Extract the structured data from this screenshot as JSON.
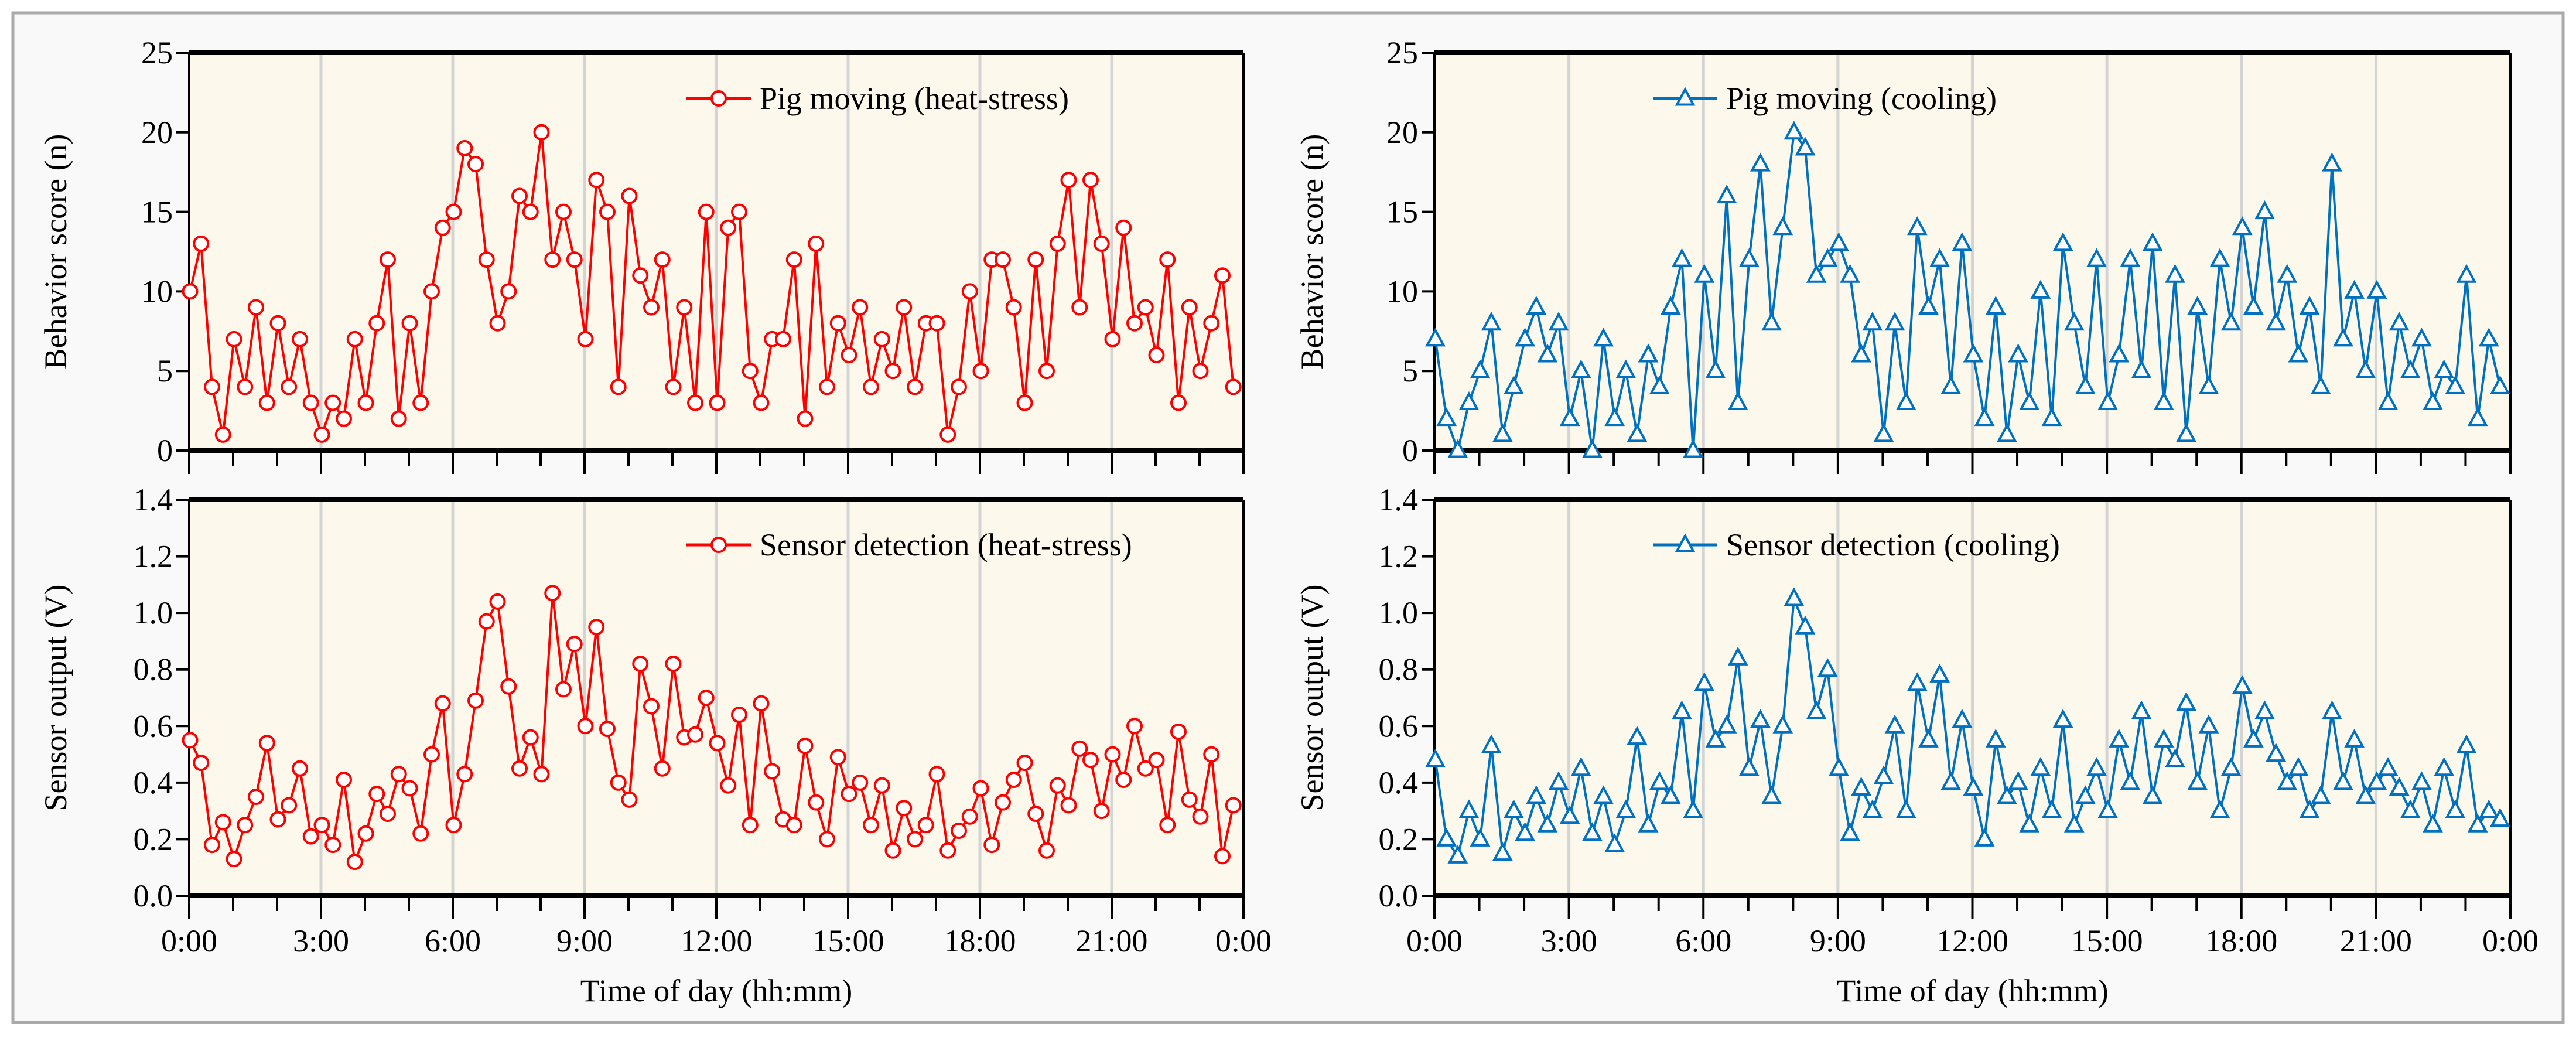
{
  "colors": {
    "heat_stress": "#ff0000",
    "cooling": "#0070c0",
    "plot_bg": "#fdf8ec",
    "grid": "#d4d4d4",
    "frame": "#aaaaaa"
  },
  "chart_data": [
    {
      "type": "line",
      "marker": "circle",
      "series_color": "#ff0000",
      "legend": "Pig moving (heat-stress)",
      "ylabel": "Behavior score (n)",
      "xlabel": "",
      "ylim": [
        0,
        25
      ],
      "yticks": [
        "0",
        "5",
        "10",
        "15",
        "20",
        "25"
      ],
      "xlim_hours": [
        0,
        24
      ],
      "xticks": [],
      "x_interval_minutes": 15,
      "values": [
        10,
        13,
        4,
        1,
        7,
        4,
        9,
        3,
        8,
        4,
        7,
        3,
        1,
        3,
        2,
        7,
        3,
        8,
        12,
        2,
        8,
        3,
        10,
        14,
        15,
        19,
        18,
        12,
        8,
        10,
        16,
        15,
        20,
        12,
        15,
        12,
        7,
        17,
        15,
        4,
        16,
        11,
        9,
        12,
        4,
        9,
        3,
        15,
        3,
        14,
        15,
        5,
        3,
        7,
        7,
        12,
        2,
        13,
        4,
        8,
        6,
        9,
        4,
        7,
        5,
        9,
        4,
        8,
        8,
        1,
        4,
        10,
        5,
        12,
        12,
        9,
        3,
        12,
        5,
        13,
        17,
        9,
        17,
        13,
        7,
        14,
        8,
        9,
        6,
        12,
        3,
        9,
        5,
        8,
        11,
        4
      ]
    },
    {
      "type": "line",
      "marker": "circle",
      "series_color": "#ff0000",
      "legend": "Sensor detection (heat-stress)",
      "ylabel": "Sensor output (V)",
      "xlabel": "Time of day (hh:mm)",
      "ylim": [
        0,
        1.4
      ],
      "yticks": [
        "0.0",
        "0.2",
        "0.4",
        "0.6",
        "0.8",
        "1.0",
        "1.2",
        "1.4"
      ],
      "xlim_hours": [
        0,
        24
      ],
      "xticks": [
        "0:00",
        "3:00",
        "6:00",
        "9:00",
        "12:00",
        "15:00",
        "18:00",
        "21:00",
        "0:00"
      ],
      "x_interval_minutes": 15,
      "values": [
        0.55,
        0.47,
        0.18,
        0.26,
        0.13,
        0.25,
        0.35,
        0.54,
        0.27,
        0.32,
        0.45,
        0.21,
        0.25,
        0.18,
        0.41,
        0.12,
        0.22,
        0.36,
        0.29,
        0.43,
        0.38,
        0.22,
        0.5,
        0.68,
        0.25,
        0.43,
        0.69,
        0.97,
        1.04,
        0.74,
        0.45,
        0.56,
        0.43,
        1.07,
        0.73,
        0.89,
        0.6,
        0.95,
        0.59,
        0.4,
        0.34,
        0.82,
        0.67,
        0.45,
        0.82,
        0.56,
        0.57,
        0.7,
        0.54,
        0.39,
        0.64,
        0.25,
        0.68,
        0.44,
        0.27,
        0.25,
        0.53,
        0.33,
        0.2,
        0.49,
        0.36,
        0.4,
        0.25,
        0.39,
        0.16,
        0.31,
        0.2,
        0.25,
        0.43,
        0.16,
        0.23,
        0.28,
        0.38,
        0.18,
        0.33,
        0.41,
        0.47,
        0.29,
        0.16,
        0.39,
        0.32,
        0.52,
        0.48,
        0.3,
        0.5,
        0.41,
        0.6,
        0.45,
        0.48,
        0.25,
        0.58,
        0.34,
        0.28,
        0.5,
        0.14,
        0.32
      ]
    },
    {
      "type": "line",
      "marker": "triangle",
      "series_color": "#0070c0",
      "legend": "Pig moving (cooling)",
      "ylabel": "Behavior score (n)",
      "xlabel": "",
      "ylim": [
        0,
        25
      ],
      "yticks": [
        "0",
        "5",
        "10",
        "15",
        "20",
        "25"
      ],
      "xlim_hours": [
        0,
        24
      ],
      "xticks": [],
      "x_interval_minutes": 15,
      "values": [
        7,
        2,
        0,
        3,
        5,
        8,
        1,
        4,
        7,
        9,
        6,
        8,
        2,
        5,
        0,
        7,
        2,
        5,
        1,
        6,
        4,
        9,
        12,
        0,
        11,
        5,
        16,
        3,
        12,
        18,
        8,
        14,
        20,
        19,
        11,
        12,
        13,
        11,
        6,
        8,
        1,
        8,
        3,
        14,
        9,
        12,
        4,
        13,
        6,
        2,
        9,
        1,
        6,
        3,
        10,
        2,
        13,
        8,
        4,
        12,
        3,
        6,
        12,
        5,
        13,
        3,
        11,
        1,
        9,
        4,
        12,
        8,
        14,
        9,
        15,
        8,
        11,
        6,
        9,
        4,
        18,
        7,
        10,
        5,
        10,
        3,
        8,
        5,
        7,
        3,
        5,
        4,
        11,
        2,
        7,
        4
      ]
    },
    {
      "type": "line",
      "marker": "triangle",
      "series_color": "#0070c0",
      "legend": "Sensor detection (cooling)",
      "ylabel": "Sensor output (V)",
      "xlabel": "Time of day (hh:mm)",
      "ylim": [
        0,
        1.4
      ],
      "yticks": [
        "0.0",
        "0.2",
        "0.4",
        "0.6",
        "0.8",
        "1.0",
        "1.2",
        "1.4"
      ],
      "xlim_hours": [
        0,
        24
      ],
      "xticks": [
        "0:00",
        "3:00",
        "6:00",
        "9:00",
        "12:00",
        "15:00",
        "18:00",
        "21:00",
        "0:00"
      ],
      "x_interval_minutes": 15,
      "values": [
        0.48,
        0.2,
        0.14,
        0.3,
        0.2,
        0.53,
        0.15,
        0.3,
        0.22,
        0.35,
        0.25,
        0.4,
        0.28,
        0.45,
        0.22,
        0.35,
        0.18,
        0.3,
        0.56,
        0.25,
        0.4,
        0.35,
        0.65,
        0.3,
        0.75,
        0.55,
        0.6,
        0.84,
        0.45,
        0.62,
        0.35,
        0.6,
        1.05,
        0.95,
        0.65,
        0.8,
        0.45,
        0.22,
        0.38,
        0.3,
        0.42,
        0.6,
        0.3,
        0.75,
        0.55,
        0.78,
        0.4,
        0.62,
        0.38,
        0.2,
        0.55,
        0.35,
        0.4,
        0.25,
        0.45,
        0.3,
        0.62,
        0.25,
        0.35,
        0.45,
        0.3,
        0.55,
        0.4,
        0.65,
        0.35,
        0.55,
        0.48,
        0.68,
        0.4,
        0.6,
        0.3,
        0.45,
        0.74,
        0.55,
        0.65,
        0.5,
        0.4,
        0.45,
        0.3,
        0.35,
        0.65,
        0.4,
        0.55,
        0.35,
        0.4,
        0.45,
        0.38,
        0.3,
        0.4,
        0.25,
        0.45,
        0.3,
        0.53,
        0.25,
        0.3,
        0.27
      ]
    }
  ]
}
